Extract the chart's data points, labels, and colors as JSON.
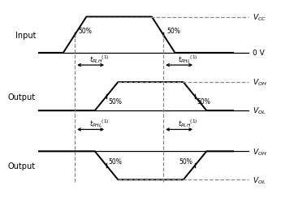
{
  "fig_width": 3.46,
  "fig_height": 2.51,
  "dpi": 100,
  "bg_color": "#ffffff",
  "wc": "#000000",
  "dc": "#888888",
  "lw_wave": 1.4,
  "lw_ref": 0.9,
  "lw_dash": 0.9,
  "lw_vdash": 0.9,
  "row_labels": [
    "Input",
    "Output",
    "Output"
  ],
  "vcc_label": "$V_{CC}$",
  "v0_label": "0 V",
  "voh1_label": "$V_{OH}$",
  "vol1_label": "$V_{OL}$",
  "voh2_label": "$V_{OH}$",
  "vol2_label": "$V_{OL}$",
  "tplh1": "$t_{PLH}$$^{(1)}$",
  "tphl1": "$t_{PHL}$$^{(1)}$",
  "tphl2": "$t_{PHL}$$^{(1)}$",
  "tplh2": "$t_{PLH}$$^{(1)}$",
  "label_fontsize": 7,
  "tick_fontsize": 5.5,
  "arrow_fontsize": 6,
  "rlabel_fontsize": 6.5
}
